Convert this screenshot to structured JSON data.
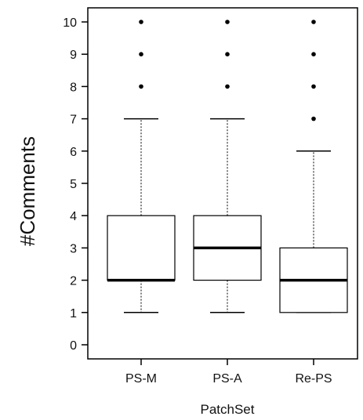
{
  "chart_data": {
    "type": "box",
    "title": "",
    "xlabel": "PatchSet",
    "ylabel": "#Comments",
    "ylim": [
      -0.3,
      10.45
    ],
    "yticks": [
      0,
      1,
      2,
      3,
      4,
      5,
      6,
      7,
      8,
      9,
      10
    ],
    "categories": [
      "PS-M",
      "PS-A",
      "Re-PS"
    ],
    "series": [
      {
        "category": "PS-M",
        "whisker_low": 1,
        "q1": 2,
        "median": 2,
        "q3": 4,
        "whisker_high": 7,
        "outliers": [
          8,
          9,
          10
        ]
      },
      {
        "category": "PS-A",
        "whisker_low": 1,
        "q1": 2,
        "median": 3,
        "q3": 4,
        "whisker_high": 7,
        "outliers": [
          8,
          9,
          10
        ]
      },
      {
        "category": "Re-PS",
        "whisker_low": 1,
        "q1": 1,
        "median": 2,
        "q3": 3,
        "whisker_high": 6,
        "outliers": [
          7,
          8,
          9,
          10
        ]
      }
    ],
    "grid": false,
    "legend": "none"
  }
}
